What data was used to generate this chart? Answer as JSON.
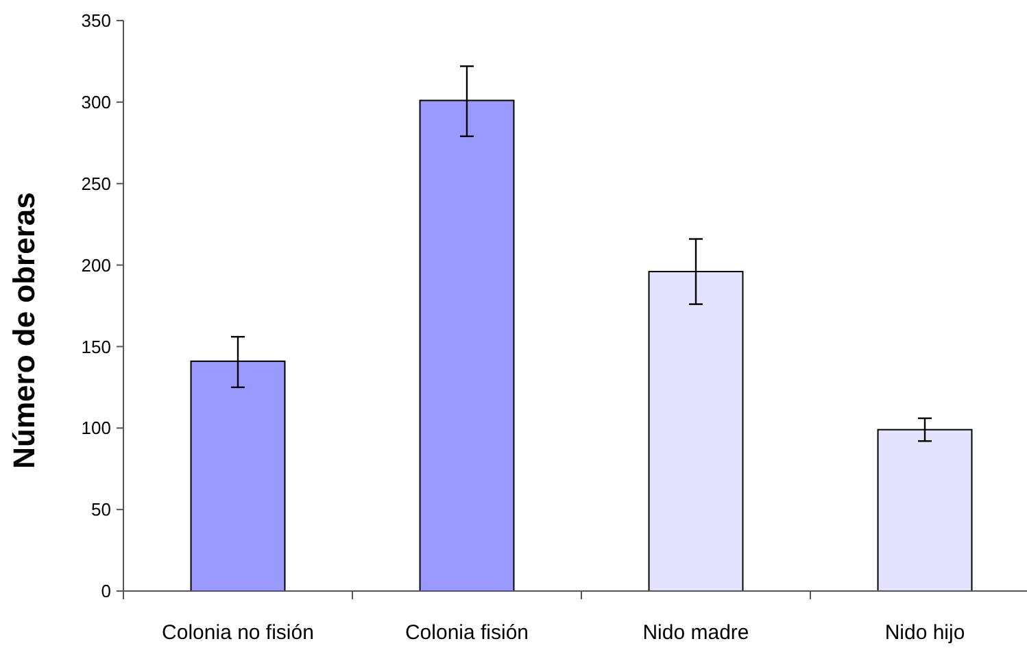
{
  "chart_data": {
    "type": "bar",
    "ylabel": "Número de obreras",
    "categories": [
      "Colonia no fisión",
      "Colonia fisión",
      "Nido madre",
      "Nido hijo"
    ],
    "values": [
      141,
      301,
      196,
      99
    ],
    "colors": [
      "#9999ff",
      "#9999ff",
      "#e3e3ff",
      "#e3e3ff"
    ],
    "errors": [
      [
        125,
        156
      ],
      [
        279,
        322
      ],
      [
        176,
        216
      ],
      [
        92,
        106
      ]
    ],
    "ylim": [
      0,
      350
    ],
    "yticks": [
      0,
      50,
      100,
      150,
      200,
      250,
      300,
      350
    ]
  }
}
